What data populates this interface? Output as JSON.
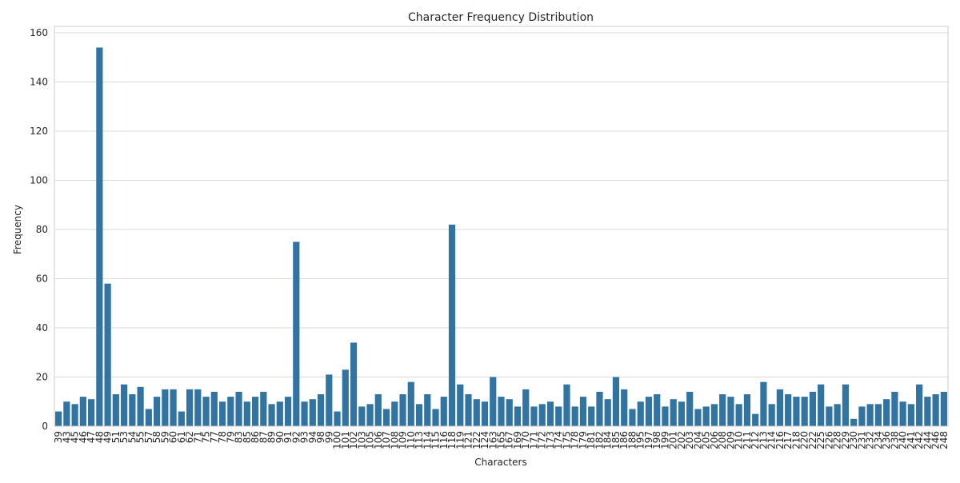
{
  "chart_data": {
    "type": "bar",
    "title": "Character Frequency Distribution",
    "xlabel": "Characters",
    "ylabel": "Frequency",
    "categories": [
      "39",
      "43",
      "45",
      "46",
      "47",
      "48",
      "49",
      "51",
      "53",
      "54",
      "55",
      "57",
      "58",
      "59",
      "60",
      "61",
      "62",
      "71",
      "75",
      "77",
      "78",
      "79",
      "83",
      "85",
      "86",
      "87",
      "89",
      "90",
      "91",
      "92",
      "93",
      "94",
      "98",
      "99",
      "100",
      "101",
      "102",
      "103",
      "105",
      "106",
      "107",
      "108",
      "109",
      "110",
      "113",
      "114",
      "115",
      "116",
      "118",
      "119",
      "121",
      "122",
      "124",
      "163",
      "165",
      "167",
      "169",
      "170",
      "171",
      "172",
      "173",
      "174",
      "175",
      "178",
      "179",
      "181",
      "182",
      "184",
      "185",
      "186",
      "188",
      "195",
      "197",
      "198",
      "199",
      "201",
      "202",
      "203",
      "204",
      "205",
      "206",
      "208",
      "209",
      "210",
      "211",
      "212",
      "213",
      "214",
      "216",
      "217",
      "218",
      "220",
      "222",
      "225",
      "226",
      "228",
      "229",
      "230",
      "231",
      "232",
      "234",
      "236",
      "238",
      "240",
      "241",
      "242",
      "244",
      "246",
      "248"
    ],
    "values": [
      6,
      10,
      9,
      12,
      11,
      154,
      58,
      13,
      17,
      13,
      16,
      7,
      12,
      15,
      15,
      6,
      15,
      15,
      12,
      14,
      10,
      12,
      14,
      10,
      12,
      14,
      9,
      10,
      12,
      75,
      10,
      11,
      13,
      21,
      6,
      23,
      34,
      8,
      9,
      13,
      7,
      10,
      13,
      18,
      9,
      13,
      7,
      12,
      82,
      17,
      13,
      11,
      10,
      20,
      12,
      11,
      8,
      15,
      8,
      9,
      10,
      8,
      17,
      8,
      12,
      8,
      14,
      11,
      20,
      15,
      7,
      10,
      12,
      13,
      8,
      11,
      10,
      14,
      7,
      8,
      9,
      13,
      12,
      9,
      13,
      5,
      18,
      9,
      15,
      13,
      12,
      12,
      14,
      17,
      8,
      9,
      17,
      3,
      8,
      9,
      9,
      11,
      14,
      10,
      9,
      17,
      12,
      13,
      14
    ],
    "color": "#3274a1",
    "ylim": [
      0,
      162.6
    ],
    "yticks": [
      0,
      20,
      40,
      60,
      80,
      100,
      120,
      140,
      160
    ],
    "grid": true
  }
}
